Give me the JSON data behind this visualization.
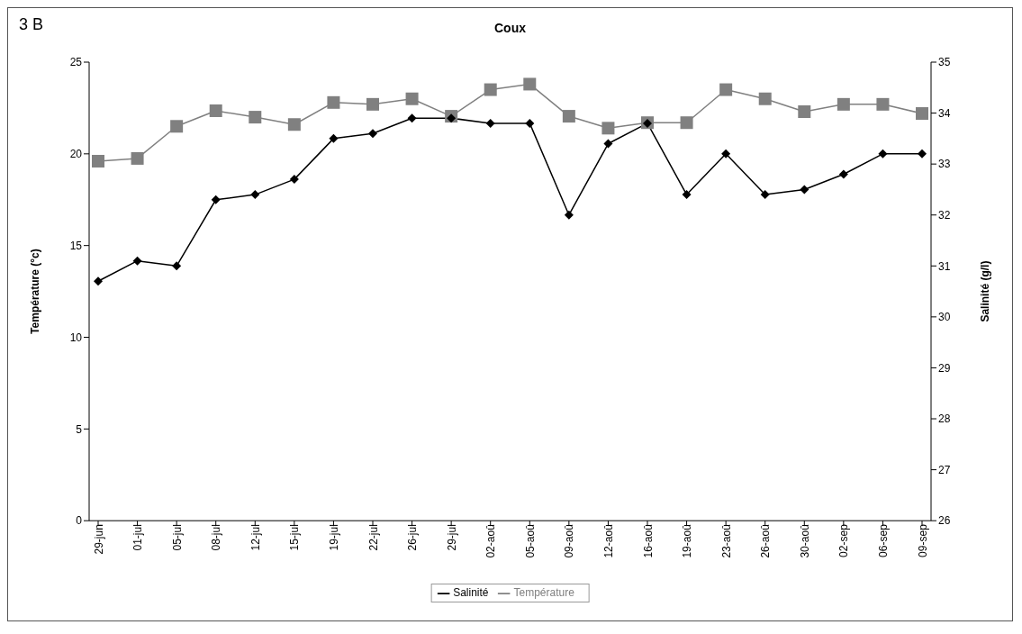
{
  "chart_data": {
    "type": "line",
    "title": "Coux",
    "annotations": [
      "3 B"
    ],
    "ylabel": "Température (°c)",
    "y2label": "Salinité (g/l)",
    "categories": [
      "29-jun",
      "01-jul",
      "05-jul",
      "08-jul",
      "12-jul",
      "15-jul",
      "19-jul",
      "22-jul",
      "26-jul",
      "29-jul",
      "02-aoû",
      "05-aoû",
      "09-aoû",
      "12-aoû",
      "16-aoû",
      "19-aoû",
      "23-aoû",
      "26-aoû",
      "30-aoû",
      "02-sep",
      "06-sep",
      "09-sep"
    ],
    "series": [
      {
        "name": "Température",
        "color": "#808080",
        "marker": "square",
        "values": [
          19.6,
          19.75,
          21.5,
          22.35,
          22.0,
          21.6,
          22.8,
          22.7,
          23.0,
          22.05,
          23.5,
          23.8,
          22.05,
          21.4,
          21.7,
          21.7,
          23.5,
          23.0,
          22.3,
          22.7,
          22.7,
          22.2
        ]
      },
      {
        "name": "Salinité",
        "color": "#000000",
        "marker": "diamond",
        "axis": "y2",
        "values": [
          30.7,
          31.1,
          31.0,
          32.3,
          32.4,
          32.7,
          33.5,
          33.6,
          33.9,
          33.9,
          33.8,
          33.8,
          32.0,
          33.4,
          33.8,
          32.4,
          33.2,
          32.4,
          32.5,
          32.8,
          33.2,
          33.2
        ]
      }
    ],
    "ylim": [
      0,
      25
    ],
    "yticks": [
      0,
      5,
      10,
      15,
      20,
      25
    ],
    "y2lim": [
      26,
      35
    ],
    "y2ticks": [
      26,
      27,
      28,
      29,
      30,
      31,
      32,
      33,
      34,
      35
    ],
    "grid": false,
    "legend": "bottom"
  }
}
